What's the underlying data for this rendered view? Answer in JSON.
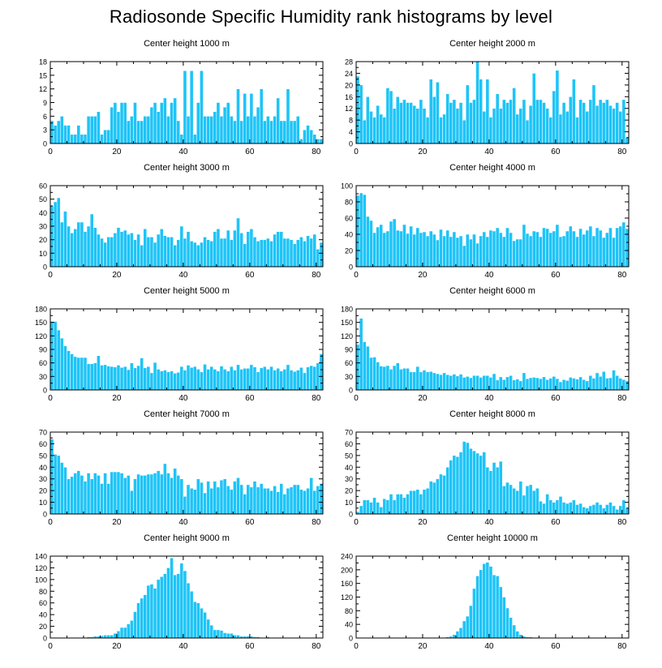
{
  "title": "Radiosonde Specific Humidity rank histograms by level",
  "colors": {
    "bar": "#1ec4f7",
    "bar_edge": "#ffffff",
    "axis": "#000000",
    "background": "#ffffff"
  },
  "chart_data": [
    {
      "type": "bar",
      "title": "Center height 1000 m",
      "xlim": [
        0,
        82
      ],
      "ylim": [
        0,
        18
      ],
      "xticks": [
        0,
        20,
        40,
        60,
        80
      ],
      "yticks": [
        0,
        3,
        6,
        9,
        12,
        15,
        18
      ],
      "values": [
        5,
        4,
        5,
        6,
        4,
        4,
        2,
        2,
        4,
        2,
        2,
        6,
        6,
        6,
        7,
        2,
        3,
        3,
        8,
        9,
        7,
        9,
        9,
        5,
        6,
        9,
        5,
        5,
        6,
        6,
        8,
        9,
        7,
        9,
        10,
        6,
        9,
        10,
        5,
        2,
        16,
        6,
        16,
        2,
        9,
        16,
        6,
        6,
        6,
        7,
        9,
        6,
        8,
        9,
        6,
        5,
        12,
        5,
        11,
        6,
        11,
        6,
        8,
        12,
        5,
        6,
        5,
        6,
        10,
        5,
        5,
        12,
        5,
        5,
        6,
        1,
        3,
        4,
        3,
        2,
        1,
        1
      ]
    },
    {
      "type": "bar",
      "title": "Center height 2000 m",
      "xlim": [
        0,
        82
      ],
      "ylim": [
        0,
        28
      ],
      "xticks": [
        0,
        20,
        40,
        60,
        80
      ],
      "yticks": [
        0,
        4,
        8,
        12,
        16,
        20,
        24,
        28
      ],
      "values": [
        23,
        20,
        8,
        16,
        11,
        9,
        13,
        10,
        9,
        19,
        18,
        12,
        16,
        14,
        15,
        14,
        14,
        13,
        12,
        15,
        12,
        9,
        22,
        16,
        21,
        9,
        10,
        17,
        14,
        15,
        12,
        14,
        8,
        20,
        14,
        15,
        28,
        22,
        11,
        22,
        9,
        12,
        17,
        12,
        15,
        14,
        15,
        19,
        10,
        12,
        15,
        8,
        13,
        24,
        15,
        15,
        14,
        12,
        9,
        18,
        25,
        10,
        14,
        11,
        16,
        22,
        9,
        15,
        14,
        11,
        15,
        20,
        13,
        15,
        14,
        15,
        13,
        12,
        14,
        11,
        15,
        2
      ]
    },
    {
      "type": "bar",
      "title": "Center height 3000 m",
      "xlim": [
        0,
        82
      ],
      "ylim": [
        0,
        60
      ],
      "xticks": [
        0,
        20,
        40,
        60,
        80
      ],
      "yticks": [
        0,
        10,
        20,
        30,
        40,
        50,
        60
      ],
      "values": [
        45,
        48,
        51,
        33,
        41,
        30,
        25,
        28,
        33,
        33,
        26,
        30,
        39,
        29,
        24,
        21,
        18,
        22,
        22,
        25,
        29,
        26,
        27,
        24,
        25,
        20,
        24,
        16,
        28,
        22,
        22,
        18,
        24,
        28,
        23,
        22,
        22,
        16,
        20,
        30,
        21,
        26,
        19,
        18,
        16,
        18,
        22,
        20,
        19,
        26,
        28,
        21,
        21,
        27,
        20,
        27,
        36,
        25,
        17,
        26,
        28,
        22,
        19,
        20,
        20,
        21,
        19,
        24,
        26,
        26,
        21,
        21,
        20,
        17,
        20,
        22,
        19,
        23,
        21,
        24,
        13,
        18
      ]
    },
    {
      "type": "bar",
      "title": "Center height 4000 m",
      "xlim": [
        0,
        82
      ],
      "ylim": [
        0,
        100
      ],
      "xticks": [
        0,
        20,
        40,
        60,
        80
      ],
      "yticks": [
        0,
        20,
        40,
        60,
        80,
        100
      ],
      "values": [
        88,
        91,
        89,
        62,
        57,
        42,
        49,
        52,
        42,
        44,
        56,
        59,
        45,
        44,
        52,
        41,
        50,
        40,
        48,
        42,
        43,
        38,
        44,
        40,
        33,
        46,
        38,
        45,
        37,
        43,
        36,
        38,
        26,
        40,
        34,
        40,
        29,
        38,
        43,
        37,
        45,
        44,
        48,
        42,
        37,
        48,
        42,
        32,
        34,
        34,
        52,
        41,
        38,
        44,
        43,
        37,
        48,
        47,
        42,
        44,
        52,
        37,
        38,
        44,
        50,
        44,
        37,
        47,
        40,
        45,
        50,
        38,
        48,
        45,
        36,
        42,
        48,
        36,
        48,
        50,
        55,
        47
      ]
    },
    {
      "type": "bar",
      "title": "Center height 5000 m",
      "xlim": [
        0,
        82
      ],
      "ylim": [
        0,
        180
      ],
      "xticks": [
        0,
        20,
        40,
        60,
        80
      ],
      "yticks": [
        0,
        30,
        60,
        90,
        120,
        150,
        180
      ],
      "values": [
        152,
        152,
        133,
        115,
        98,
        87,
        80,
        74,
        72,
        72,
        72,
        58,
        58,
        60,
        76,
        55,
        56,
        53,
        52,
        51,
        55,
        50,
        52,
        45,
        60,
        49,
        54,
        71,
        49,
        52,
        38,
        61,
        46,
        42,
        44,
        40,
        42,
        37,
        39,
        52,
        44,
        55,
        50,
        52,
        46,
        40,
        57,
        46,
        52,
        46,
        42,
        53,
        46,
        42,
        52,
        44,
        56,
        46,
        48,
        48,
        56,
        51,
        40,
        49,
        52,
        46,
        52,
        44,
        48,
        42,
        46,
        56,
        44,
        41,
        44,
        50,
        38,
        51,
        54,
        52,
        60,
        80
      ]
    },
    {
      "type": "bar",
      "title": "Center height 6000 m",
      "xlim": [
        0,
        82
      ],
      "ylim": [
        0,
        180
      ],
      "xticks": [
        0,
        20,
        40,
        60,
        80
      ],
      "yticks": [
        0,
        30,
        60,
        90,
        120,
        150,
        180
      ],
      "values": [
        101,
        159,
        107,
        97,
        72,
        73,
        62,
        53,
        52,
        54,
        46,
        54,
        60,
        46,
        48,
        48,
        40,
        40,
        52,
        40,
        44,
        40,
        41,
        38,
        36,
        34,
        38,
        34,
        32,
        35,
        31,
        35,
        28,
        30,
        27,
        32,
        32,
        28,
        32,
        32,
        28,
        36,
        22,
        29,
        23,
        29,
        32,
        22,
        24,
        20,
        38,
        25,
        27,
        28,
        27,
        25,
        29,
        23,
        26,
        30,
        25,
        18,
        23,
        21,
        28,
        26,
        24,
        29,
        23,
        20,
        32,
        26,
        38,
        30,
        41,
        26,
        27,
        44,
        32,
        26,
        23,
        20
      ]
    },
    {
      "type": "bar",
      "title": "Center height 7000 m",
      "xlim": [
        0,
        82
      ],
      "ylim": [
        0,
        70
      ],
      "xticks": [
        0,
        20,
        40,
        60,
        80
      ],
      "yticks": [
        0,
        10,
        20,
        30,
        40,
        50,
        60,
        70
      ],
      "values": [
        64,
        51,
        50,
        44,
        40,
        30,
        32,
        35,
        37,
        33,
        28,
        35,
        30,
        35,
        33,
        26,
        35,
        26,
        36,
        36,
        36,
        35,
        31,
        33,
        20,
        30,
        34,
        33,
        33,
        34,
        34,
        35,
        37,
        34,
        43,
        35,
        31,
        39,
        33,
        30,
        15,
        25,
        22,
        21,
        30,
        27,
        18,
        28,
        22,
        28,
        23,
        29,
        30,
        24,
        21,
        28,
        31,
        25,
        17,
        25,
        23,
        28,
        23,
        26,
        22,
        22,
        20,
        24,
        19,
        26,
        17,
        22,
        23,
        25,
        25,
        21,
        20,
        22,
        31,
        20,
        24,
        26
      ]
    },
    {
      "type": "bar",
      "title": "Center height 8000 m",
      "xlim": [
        0,
        82
      ],
      "ylim": [
        0,
        70
      ],
      "xticks": [
        0,
        20,
        40,
        60,
        80
      ],
      "yticks": [
        0,
        10,
        20,
        30,
        40,
        50,
        60,
        70
      ],
      "values": [
        2,
        7,
        12,
        12,
        10,
        14,
        10,
        6,
        13,
        12,
        17,
        12,
        17,
        17,
        14,
        17,
        20,
        20,
        21,
        17,
        21,
        22,
        28,
        27,
        30,
        34,
        33,
        40,
        46,
        50,
        49,
        53,
        62,
        61,
        56,
        54,
        52,
        50,
        53,
        40,
        37,
        44,
        40,
        45,
        24,
        27,
        25,
        22,
        20,
        28,
        16,
        24,
        25,
        20,
        22,
        11,
        9,
        17,
        12,
        10,
        12,
        15,
        10,
        9,
        10,
        12,
        8,
        9,
        6,
        5,
        7,
        8,
        10,
        8,
        5,
        8,
        10,
        7,
        4,
        7,
        12,
        5
      ]
    },
    {
      "type": "bar",
      "title": "Center height 9000 m",
      "xlim": [
        0,
        82
      ],
      "ylim": [
        0,
        140
      ],
      "xticks": [
        0,
        20,
        40,
        60,
        80
      ],
      "yticks": [
        0,
        20,
        40,
        60,
        80,
        100,
        120,
        140
      ],
      "values": [
        0,
        0,
        0,
        0,
        0,
        0,
        0,
        1,
        1,
        1,
        1,
        2,
        2,
        3,
        3,
        4,
        5,
        5,
        5,
        8,
        12,
        18,
        18,
        24,
        30,
        45,
        60,
        68,
        74,
        90,
        92,
        85,
        100,
        105,
        110,
        120,
        137,
        108,
        110,
        128,
        115,
        94,
        80,
        62,
        60,
        51,
        44,
        32,
        22,
        14,
        14,
        13,
        9,
        8,
        8,
        5,
        5,
        3,
        3,
        3,
        3,
        2,
        2,
        1,
        1,
        2,
        1,
        1,
        0,
        0,
        0,
        0,
        0,
        0,
        0,
        0,
        0,
        0,
        0,
        0,
        0,
        0
      ]
    },
    {
      "type": "bar",
      "title": "Center height 10000 m",
      "xlim": [
        0,
        82
      ],
      "ylim": [
        0,
        240
      ],
      "xticks": [
        0,
        20,
        40,
        60,
        80
      ],
      "yticks": [
        0,
        40,
        80,
        120,
        160,
        200,
        240
      ],
      "values": [
        0,
        0,
        0,
        0,
        0,
        0,
        0,
        0,
        0,
        0,
        0,
        0,
        0,
        0,
        0,
        0,
        0,
        0,
        0,
        0,
        0,
        0,
        1,
        1,
        1,
        2,
        2,
        3,
        5,
        10,
        20,
        30,
        50,
        64,
        95,
        145,
        182,
        200,
        218,
        222,
        210,
        185,
        182,
        150,
        120,
        88,
        60,
        38,
        20,
        10,
        5,
        3,
        3,
        2,
        2,
        1,
        1,
        1,
        1,
        1,
        0,
        0,
        0,
        0,
        0,
        0,
        1,
        1,
        1,
        0,
        0,
        0,
        0,
        0,
        0,
        0,
        0,
        0,
        0,
        0,
        0,
        0
      ]
    }
  ]
}
